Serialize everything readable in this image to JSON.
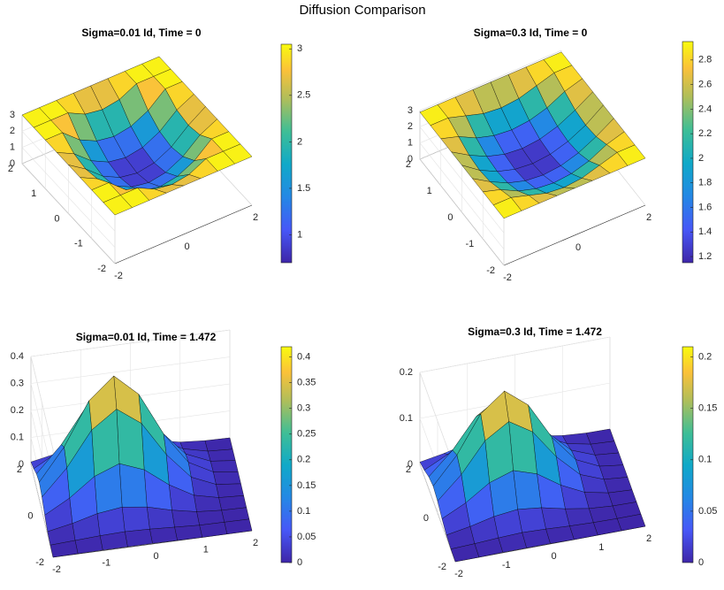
{
  "title": "Diffusion Comparison",
  "chart_data": [
    {
      "type": "surface",
      "title": "Sigma=0.01 Id, Time = 0",
      "colormap": "parula",
      "grid": true,
      "x": [
        -2,
        -1.5,
        -1,
        -0.5,
        0,
        0.5,
        1,
        1.5,
        2
      ],
      "y": [
        -2,
        -1.5,
        -1,
        -0.5,
        0,
        0.5,
        1,
        1.5,
        2
      ],
      "z": [
        [
          3,
          3,
          3,
          3,
          3,
          3,
          3,
          3,
          3
        ],
        [
          3,
          3,
          3,
          2.47,
          2.3,
          2.47,
          3,
          3,
          3
        ],
        [
          3,
          3,
          2.11,
          1.59,
          1.41,
          1.59,
          2.11,
          3,
          3
        ],
        [
          3,
          2.47,
          1.59,
          1.06,
          0.88,
          1.06,
          1.59,
          2.47,
          3
        ],
        [
          3,
          2.3,
          1.41,
          0.88,
          0.7,
          0.88,
          1.41,
          2.3,
          3
        ],
        [
          3,
          2.47,
          1.59,
          1.06,
          0.88,
          1.06,
          1.59,
          2.47,
          3
        ],
        [
          3,
          3,
          2.11,
          1.59,
          1.41,
          1.59,
          2.11,
          3,
          3
        ],
        [
          3,
          3,
          3,
          2.47,
          2.3,
          2.47,
          3,
          3,
          3
        ],
        [
          3,
          3,
          3,
          3,
          3,
          3,
          3,
          3,
          3
        ]
      ],
      "xlim": [
        -2,
        2
      ],
      "ylim": [
        -2,
        2
      ],
      "zlim": [
        0,
        3
      ],
      "xticks": [
        -2,
        0,
        2
      ],
      "yticks": [
        -2,
        -1,
        0,
        1,
        2
      ],
      "zticks": [
        0,
        1,
        2,
        3
      ],
      "clim": [
        0.7,
        3.05
      ],
      "cticks": [
        1,
        1.5,
        2,
        2.5,
        3
      ]
    },
    {
      "type": "surface",
      "title": "Sigma=0.3 Id, Time = 0",
      "colormap": "parula",
      "grid": true,
      "x": [
        -2,
        -1.5,
        -1,
        -0.5,
        0,
        0.5,
        1,
        1.5,
        2
      ],
      "y": [
        -2,
        -1.5,
        -1,
        -0.5,
        0,
        0.5,
        1,
        1.5,
        2
      ],
      "z": [
        [
          2.9,
          2.9,
          2.9,
          2.9,
          2.9,
          2.9,
          2.9,
          2.9,
          2.9
        ],
        [
          2.9,
          2.9,
          2.57,
          2.24,
          2.13,
          2.24,
          2.57,
          2.9,
          2.9
        ],
        [
          2.9,
          2.57,
          2.02,
          1.7,
          1.59,
          1.7,
          2.02,
          2.57,
          2.9
        ],
        [
          2.9,
          2.24,
          1.7,
          1.37,
          1.26,
          1.37,
          1.7,
          2.24,
          2.9
        ],
        [
          2.9,
          2.13,
          1.59,
          1.26,
          1.15,
          1.26,
          1.59,
          2.13,
          2.9
        ],
        [
          2.9,
          2.24,
          1.7,
          1.37,
          1.26,
          1.37,
          1.7,
          2.24,
          2.9
        ],
        [
          2.9,
          2.57,
          2.02,
          1.7,
          1.59,
          1.7,
          2.02,
          2.57,
          2.9
        ],
        [
          2.9,
          2.9,
          2.57,
          2.24,
          2.13,
          2.24,
          2.57,
          2.9,
          2.9
        ],
        [
          2.9,
          2.9,
          2.9,
          2.9,
          2.9,
          2.9,
          2.9,
          2.9,
          2.9
        ]
      ],
      "xlim": [
        -2,
        2
      ],
      "ylim": [
        -2,
        2
      ],
      "zlim": [
        0,
        3
      ],
      "xticks": [
        -2,
        0,
        2
      ],
      "yticks": [
        -2,
        -1,
        0,
        1,
        2
      ],
      "zticks": [
        0,
        1,
        2,
        3
      ],
      "clim": [
        1.15,
        2.95
      ],
      "cticks": [
        1.2,
        1.4,
        1.6,
        1.8,
        2,
        2.2,
        2.4,
        2.6,
        2.8
      ]
    },
    {
      "type": "surface",
      "title": "Sigma=0.01 Id, Time = 1.472",
      "colormap": "parula",
      "grid": true,
      "x": [
        -2,
        -1.5,
        -1,
        -0.5,
        0,
        0.5,
        1,
        1.5,
        2
      ],
      "y": [
        -2,
        -1.5,
        -1,
        -0.5,
        0,
        0.5,
        1,
        1.5,
        2
      ],
      "z": [
        [
          0,
          0.001,
          0.002,
          0.002,
          0.002,
          0.001,
          0,
          0,
          0
        ],
        [
          0.002,
          0.007,
          0.012,
          0.015,
          0.012,
          0.007,
          0.002,
          0.001,
          0
        ],
        [
          0.009,
          0.027,
          0.051,
          0.063,
          0.051,
          0.027,
          0.009,
          0.002,
          0
        ],
        [
          0.027,
          0.078,
          0.146,
          0.181,
          0.146,
          0.078,
          0.027,
          0.006,
          0.001
        ],
        [
          0.051,
          0.147,
          0.275,
          0.34,
          0.275,
          0.147,
          0.051,
          0.012,
          0.002
        ],
        [
          0.063,
          0.181,
          0.34,
          0.42,
          0.34,
          0.181,
          0.063,
          0.015,
          0.002
        ],
        [
          0.051,
          0.147,
          0.275,
          0.34,
          0.275,
          0.147,
          0.051,
          0.012,
          0.002
        ],
        [
          0.027,
          0.078,
          0.146,
          0.181,
          0.146,
          0.078,
          0.027,
          0.006,
          0.001
        ],
        [
          0.009,
          0.027,
          0.051,
          0.063,
          0.051,
          0.027,
          0.009,
          0.002,
          0
        ]
      ],
      "xlim": [
        -2,
        2
      ],
      "ylim": [
        -2,
        2
      ],
      "zlim": [
        0,
        0.4
      ],
      "xticks": [
        -2,
        -1,
        0,
        1,
        2
      ],
      "yticks": [
        -2,
        0,
        2
      ],
      "zticks": [
        0,
        0.1,
        0.2,
        0.3,
        0.4
      ],
      "clim": [
        0,
        0.42
      ],
      "cticks": [
        0,
        0.05,
        0.1,
        0.15,
        0.2,
        0.25,
        0.3,
        0.35,
        0.4
      ]
    },
    {
      "type": "surface",
      "title": "Sigma=0.3 Id, Time = 1.472",
      "colormap": "parula",
      "grid": true,
      "x": [
        -2,
        -1.5,
        -1,
        -0.5,
        0,
        0.5,
        1,
        1.5,
        2
      ],
      "y": [
        -2,
        -1.5,
        -1,
        -0.5,
        0,
        0.5,
        1,
        1.5,
        2
      ],
      "z": [
        [
          0,
          0,
          0.001,
          0.001,
          0.001,
          0,
          0,
          0,
          0
        ],
        [
          0.001,
          0.003,
          0.006,
          0.008,
          0.006,
          0.003,
          0.001,
          0,
          0
        ],
        [
          0.005,
          0.014,
          0.026,
          0.032,
          0.026,
          0.014,
          0.005,
          0.001,
          0
        ],
        [
          0.014,
          0.039,
          0.073,
          0.09,
          0.073,
          0.039,
          0.014,
          0.003,
          0
        ],
        [
          0.026,
          0.074,
          0.138,
          0.17,
          0.138,
          0.074,
          0.026,
          0.006,
          0.001
        ],
        [
          0.032,
          0.09,
          0.17,
          0.21,
          0.17,
          0.09,
          0.032,
          0.008,
          0.001
        ],
        [
          0.026,
          0.074,
          0.138,
          0.17,
          0.138,
          0.074,
          0.026,
          0.006,
          0.001
        ],
        [
          0.014,
          0.039,
          0.073,
          0.09,
          0.073,
          0.039,
          0.014,
          0.003,
          0
        ],
        [
          0.005,
          0.014,
          0.026,
          0.032,
          0.026,
          0.014,
          0.005,
          0.001,
          0
        ]
      ],
      "xlim": [
        -2,
        2
      ],
      "ylim": [
        -2,
        2
      ],
      "zlim": [
        0,
        0.2
      ],
      "xticks": [
        -2,
        -1,
        0,
        1,
        2
      ],
      "yticks": [
        -2,
        0,
        2
      ],
      "zticks": [
        0,
        0.1,
        0.2
      ],
      "clim": [
        0,
        0.21
      ],
      "cticks": [
        0,
        0.05,
        0.1,
        0.15,
        0.2
      ]
    }
  ]
}
